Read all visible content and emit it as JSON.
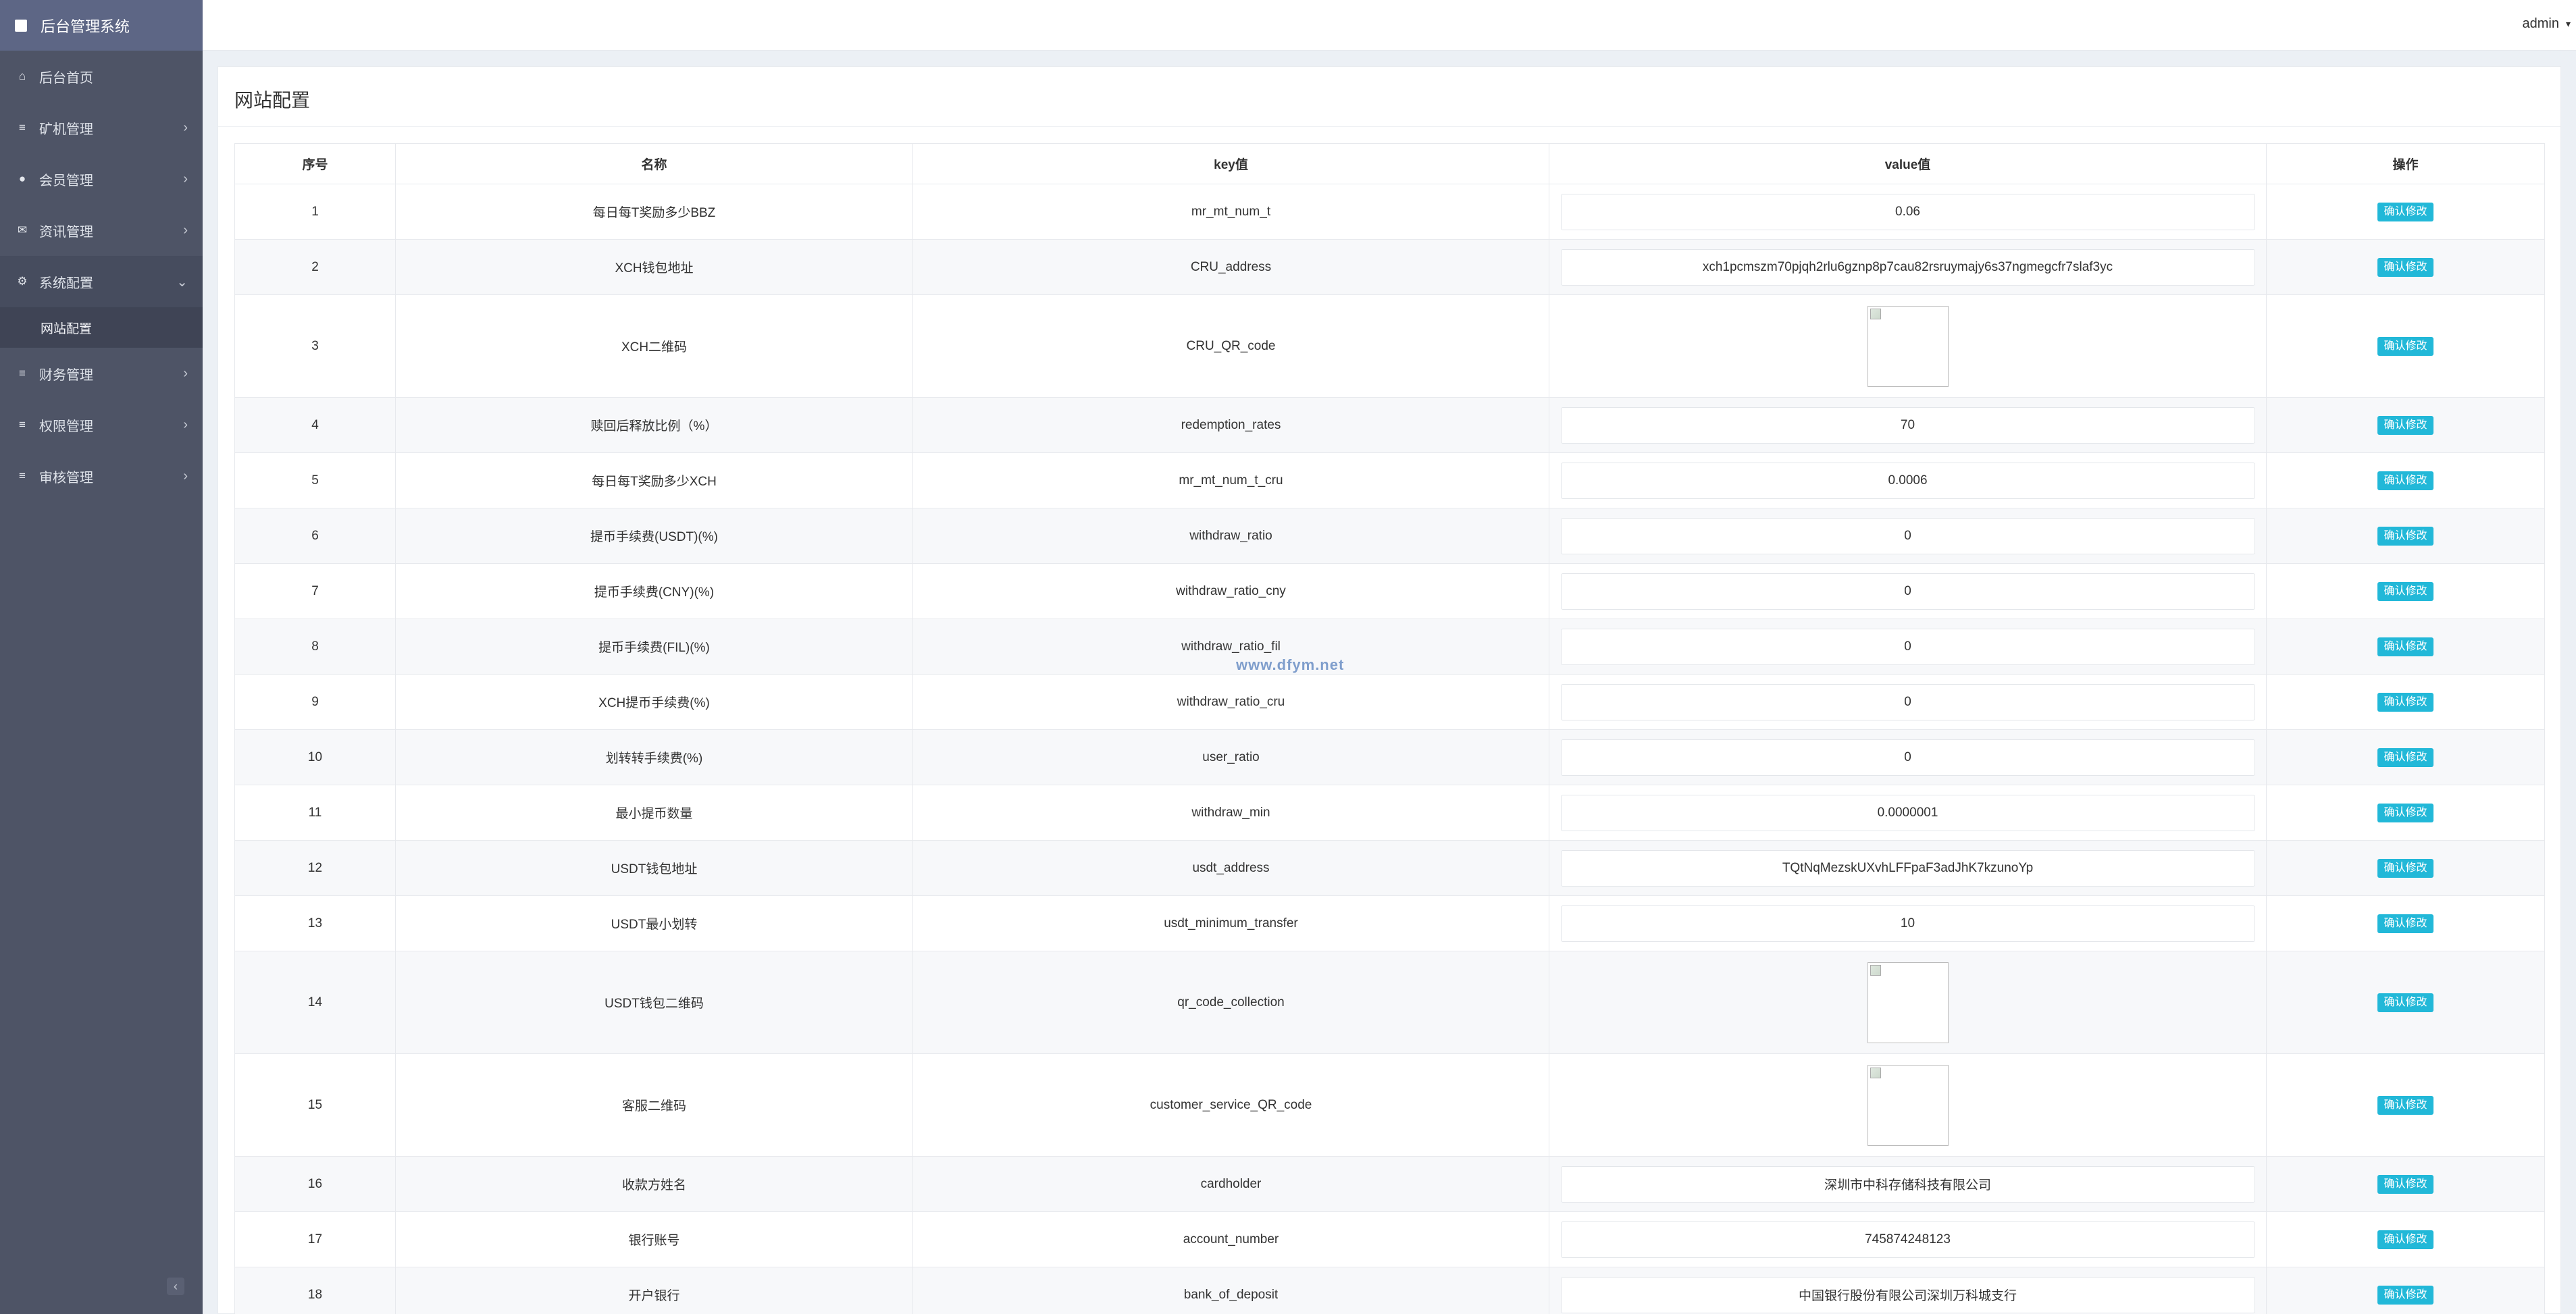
{
  "app": {
    "title": "后台管理系统",
    "user": "admin"
  },
  "sidebar": {
    "items": [
      {
        "label": "后台首页",
        "icon": "home-icon",
        "glyph": "⌂",
        "arrow": ""
      },
      {
        "label": "矿机管理",
        "icon": "list-icon",
        "glyph": "≡",
        "arrow": "›"
      },
      {
        "label": "会员管理",
        "icon": "user-icon",
        "glyph": "●",
        "arrow": "›"
      },
      {
        "label": "资讯管理",
        "icon": "envelope-icon",
        "glyph": "✉",
        "arrow": "›"
      },
      {
        "label": "系统配置",
        "icon": "gears-icon",
        "glyph": "⚙",
        "arrow": "⌄"
      },
      {
        "label": "财务管理",
        "icon": "list-icon",
        "glyph": "≡",
        "arrow": "›"
      },
      {
        "label": "权限管理",
        "icon": "list-icon",
        "glyph": "≡",
        "arrow": "›"
      },
      {
        "label": "审核管理",
        "icon": "list-icon",
        "glyph": "≡",
        "arrow": "›"
      }
    ],
    "submenu": {
      "label": "网站配置"
    },
    "collapse_glyph": "‹"
  },
  "page": {
    "title": "网站配置"
  },
  "table": {
    "headers": [
      "序号",
      "名称",
      "key值",
      "value值",
      "操作"
    ],
    "action_label": "确认修改",
    "rows": [
      {
        "no": "1",
        "name": "每日每T奖励多少BBZ",
        "key": "mr_mt_num_t",
        "value": "0.06",
        "type": "text"
      },
      {
        "no": "2",
        "name": "XCH钱包地址",
        "key": "CRU_address",
        "value": "xch1pcmszm70pjqh2rlu6gznp8p7cau82rsruymajy6s37ngmegcfr7slaf3yc",
        "type": "text"
      },
      {
        "no": "3",
        "name": "XCH二维码",
        "key": "CRU_QR_code",
        "value": "",
        "type": "image"
      },
      {
        "no": "4",
        "name": "赎回后释放比例（%）",
        "key": "redemption_rates",
        "value": "70",
        "type": "text"
      },
      {
        "no": "5",
        "name": "每日每T奖励多少XCH",
        "key": "mr_mt_num_t_cru",
        "value": "0.0006",
        "type": "text"
      },
      {
        "no": "6",
        "name": "提币手续费(USDT)(%)",
        "key": "withdraw_ratio",
        "value": "0",
        "type": "text"
      },
      {
        "no": "7",
        "name": "提币手续费(CNY)(%)",
        "key": "withdraw_ratio_cny",
        "value": "0",
        "type": "text"
      },
      {
        "no": "8",
        "name": "提币手续费(FIL)(%)",
        "key": "withdraw_ratio_fil",
        "value": "0",
        "type": "text"
      },
      {
        "no": "9",
        "name": "XCH提币手续费(%)",
        "key": "withdraw_ratio_cru",
        "value": "0",
        "type": "text"
      },
      {
        "no": "10",
        "name": "划转转手续费(%)",
        "key": "user_ratio",
        "value": "0",
        "type": "text"
      },
      {
        "no": "11",
        "name": "最小提币数量",
        "key": "withdraw_min",
        "value": "0.0000001",
        "type": "text"
      },
      {
        "no": "12",
        "name": "USDT钱包地址",
        "key": "usdt_address",
        "value": "TQtNqMezskUXvhLFFpaF3adJhK7kzunoYp",
        "type": "text"
      },
      {
        "no": "13",
        "name": "USDT最小划转",
        "key": "usdt_minimum_transfer",
        "value": "10",
        "type": "text"
      },
      {
        "no": "14",
        "name": "USDT钱包二维码",
        "key": "qr_code_collection",
        "value": "",
        "type": "image"
      },
      {
        "no": "15",
        "name": "客服二维码",
        "key": "customer_service_QR_code",
        "value": "",
        "type": "image"
      },
      {
        "no": "16",
        "name": "收款方姓名",
        "key": "cardholder",
        "value": "深圳市中科存储科技有限公司",
        "type": "text"
      },
      {
        "no": "17",
        "name": "银行账号",
        "key": "account_number",
        "value": "745874248123",
        "type": "text"
      },
      {
        "no": "18",
        "name": "开户银行",
        "key": "bank_of_deposit",
        "value": "中国银行股份有限公司深圳万科城支行",
        "type": "text"
      }
    ]
  },
  "watermark": "www.dfym.net"
}
